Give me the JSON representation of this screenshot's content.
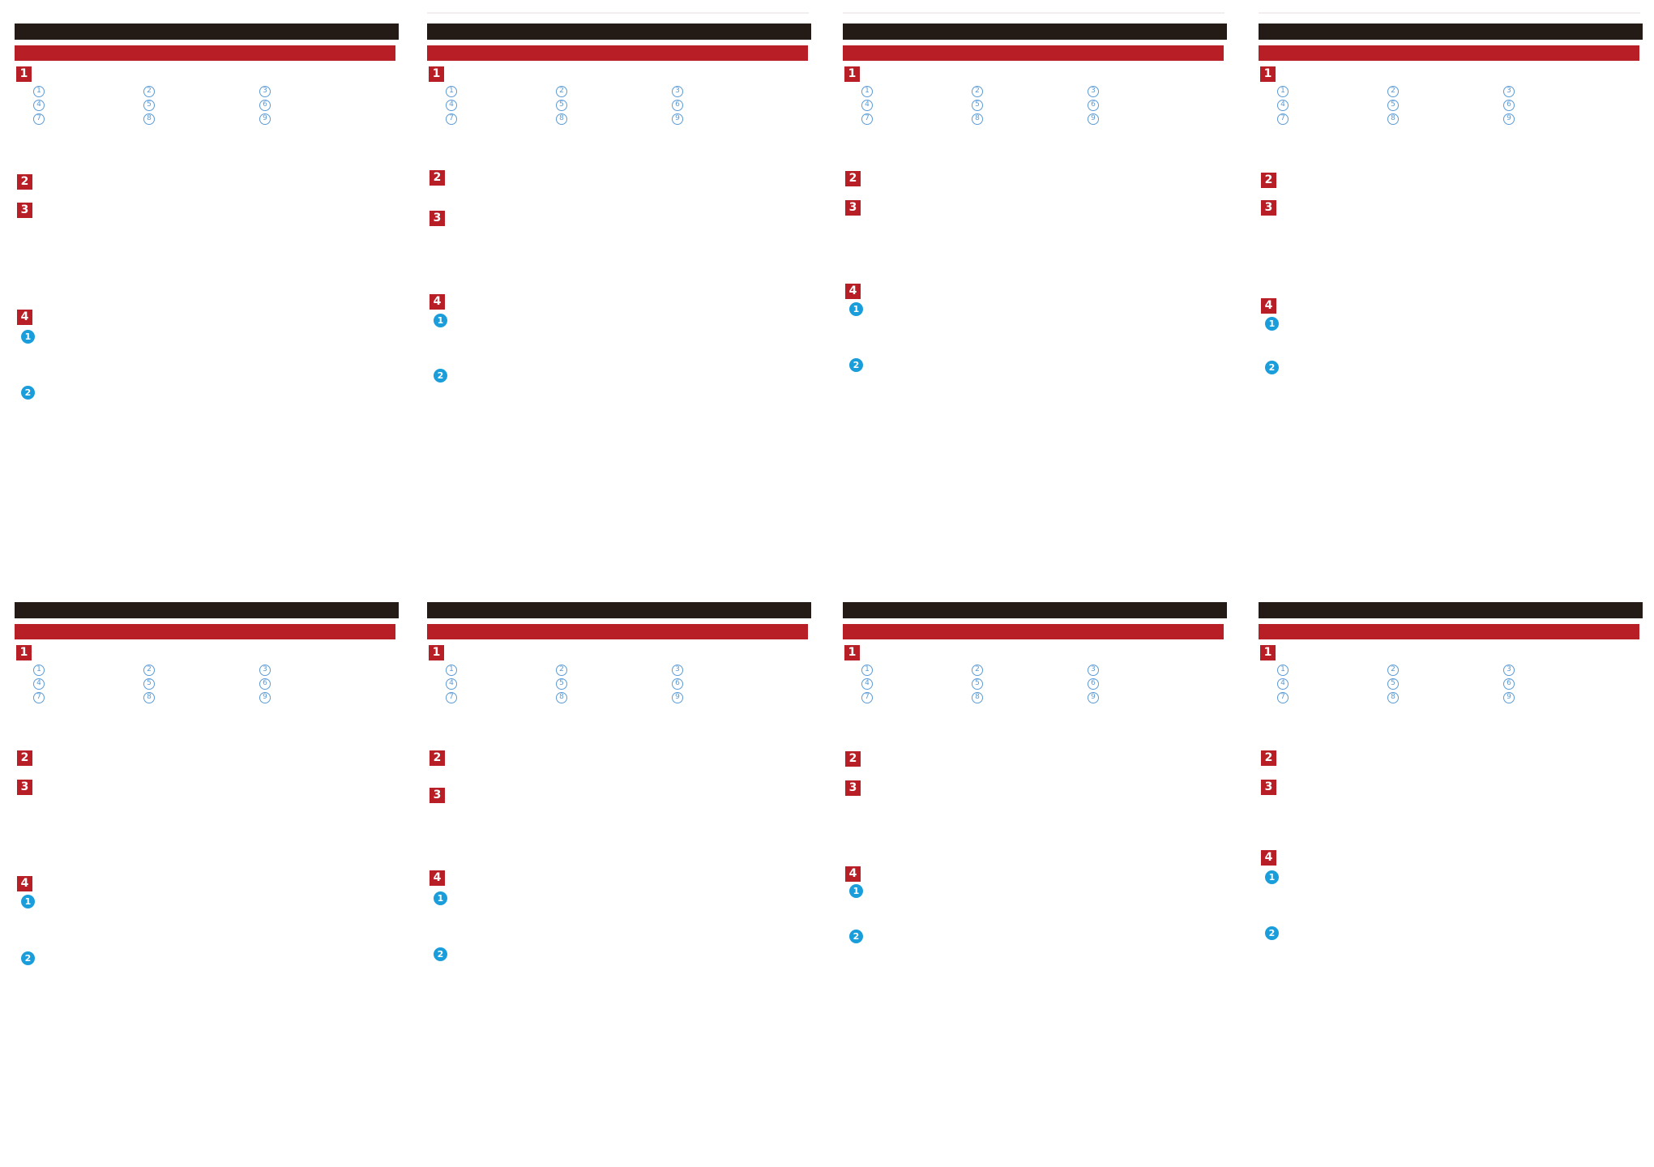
{
  "document": {
    "type": "page-preview-grid",
    "page_count": 8,
    "grid": "4x2"
  },
  "colors": {
    "title_bar": "#241a16",
    "accent_red": "#b81e25",
    "outline_circle_blue": "#5b9bd5",
    "filled_circle_blue": "#1a9ddb",
    "badge_text": "#ffffff",
    "page_background": "#ffffff"
  },
  "panels": [
    {
      "section1": {
        "badge": "1",
        "circled_items": [
          "1",
          "2",
          "3",
          "4",
          "5",
          "6",
          "7",
          "8",
          "9"
        ]
      },
      "section2": {
        "badge": "2"
      },
      "section3": {
        "badge": "3"
      },
      "section4": {
        "badge": "4",
        "filled_items": [
          "1",
          "2"
        ]
      }
    },
    {
      "section1": {
        "badge": "1",
        "circled_items": [
          "1",
          "2",
          "3",
          "4",
          "5",
          "6",
          "7",
          "8",
          "9"
        ]
      },
      "section2": {
        "badge": "2"
      },
      "section3": {
        "badge": "3"
      },
      "section4": {
        "badge": "4",
        "filled_items": [
          "1",
          "2"
        ]
      }
    },
    {
      "section1": {
        "badge": "1",
        "circled_items": [
          "1",
          "2",
          "3",
          "4",
          "5",
          "6",
          "7",
          "8",
          "9"
        ]
      },
      "section2": {
        "badge": "2"
      },
      "section3": {
        "badge": "3"
      },
      "section4": {
        "badge": "4",
        "filled_items": [
          "1",
          "2"
        ]
      }
    },
    {
      "section1": {
        "badge": "1",
        "circled_items": [
          "1",
          "2",
          "3",
          "4",
          "5",
          "6",
          "7",
          "8",
          "9"
        ]
      },
      "section2": {
        "badge": "2"
      },
      "section3": {
        "badge": "3"
      },
      "section4": {
        "badge": "4",
        "filled_items": [
          "1",
          "2"
        ]
      }
    },
    {
      "section1": {
        "badge": "1",
        "circled_items": [
          "1",
          "2",
          "3",
          "4",
          "5",
          "6",
          "7",
          "8",
          "9"
        ]
      },
      "section2": {
        "badge": "2"
      },
      "section3": {
        "badge": "3"
      },
      "section4": {
        "badge": "4",
        "filled_items": [
          "1",
          "2"
        ]
      }
    },
    {
      "section1": {
        "badge": "1",
        "circled_items": [
          "1",
          "2",
          "3",
          "4",
          "5",
          "6",
          "7",
          "8",
          "9"
        ]
      },
      "section2": {
        "badge": "2"
      },
      "section3": {
        "badge": "3"
      },
      "section4": {
        "badge": "4",
        "filled_items": [
          "1",
          "2"
        ]
      }
    },
    {
      "section1": {
        "badge": "1",
        "circled_items": [
          "1",
          "2",
          "3",
          "4",
          "5",
          "6",
          "7",
          "8",
          "9"
        ]
      },
      "section2": {
        "badge": "2"
      },
      "section3": {
        "badge": "3"
      },
      "section4": {
        "badge": "4",
        "filled_items": [
          "1",
          "2"
        ]
      }
    },
    {
      "section1": {
        "badge": "1",
        "circled_items": [
          "1",
          "2",
          "3",
          "4",
          "5",
          "6",
          "7",
          "8",
          "9"
        ]
      },
      "section2": {
        "badge": "2"
      },
      "section3": {
        "badge": "3"
      },
      "section4": {
        "badge": "4",
        "filled_items": [
          "1",
          "2"
        ]
      }
    }
  ]
}
